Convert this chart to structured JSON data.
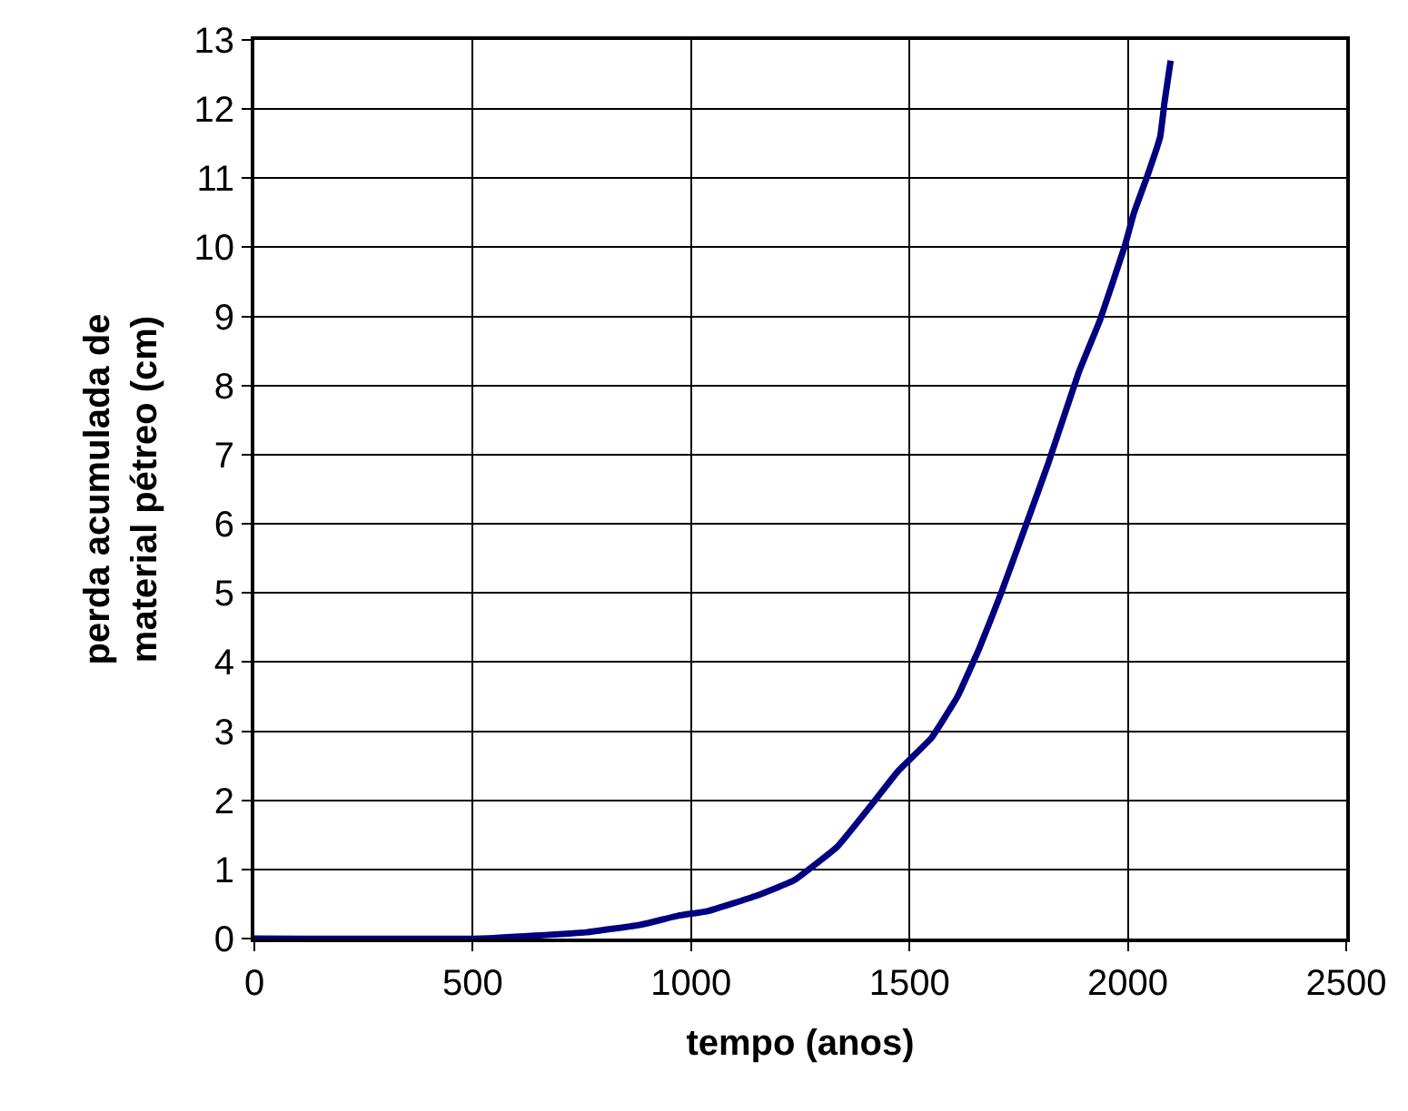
{
  "chart_data": {
    "type": "line",
    "xlabel": "tempo (anos)",
    "ylabel": "perda acumulada de\nmaterial pétreo (cm)",
    "x": [
      0,
      520,
      760,
      885,
      970,
      1040,
      1150,
      1235,
      1335,
      1420,
      1475,
      1550,
      1610,
      1660,
      1710,
      1769,
      1818,
      1888,
      1937,
      1993,
      2014,
      2045,
      2074,
      2084,
      2098
    ],
    "series": [
      {
        "color": "#000080",
        "values": [
          0,
          0,
          0.09,
          0.2,
          0.33,
          0.4,
          0.62,
          0.84,
          1.33,
          1.99,
          2.43,
          2.9,
          3.5,
          4.2,
          5.0,
          6.02,
          6.88,
          8.2,
          8.96,
          10.02,
          10.5,
          11.04,
          11.6,
          12.1,
          12.7
        ]
      }
    ],
    "xlim": [
      0,
      2500
    ],
    "xticks": [
      0,
      500,
      1000,
      1500,
      2000,
      2500
    ],
    "ylim": [
      0,
      13
    ],
    "yticks": [
      0,
      1,
      2,
      3,
      4,
      5,
      6,
      7,
      8,
      9,
      10,
      11,
      12,
      13
    ],
    "grid": true,
    "marker": "none",
    "line_style": "solid"
  }
}
